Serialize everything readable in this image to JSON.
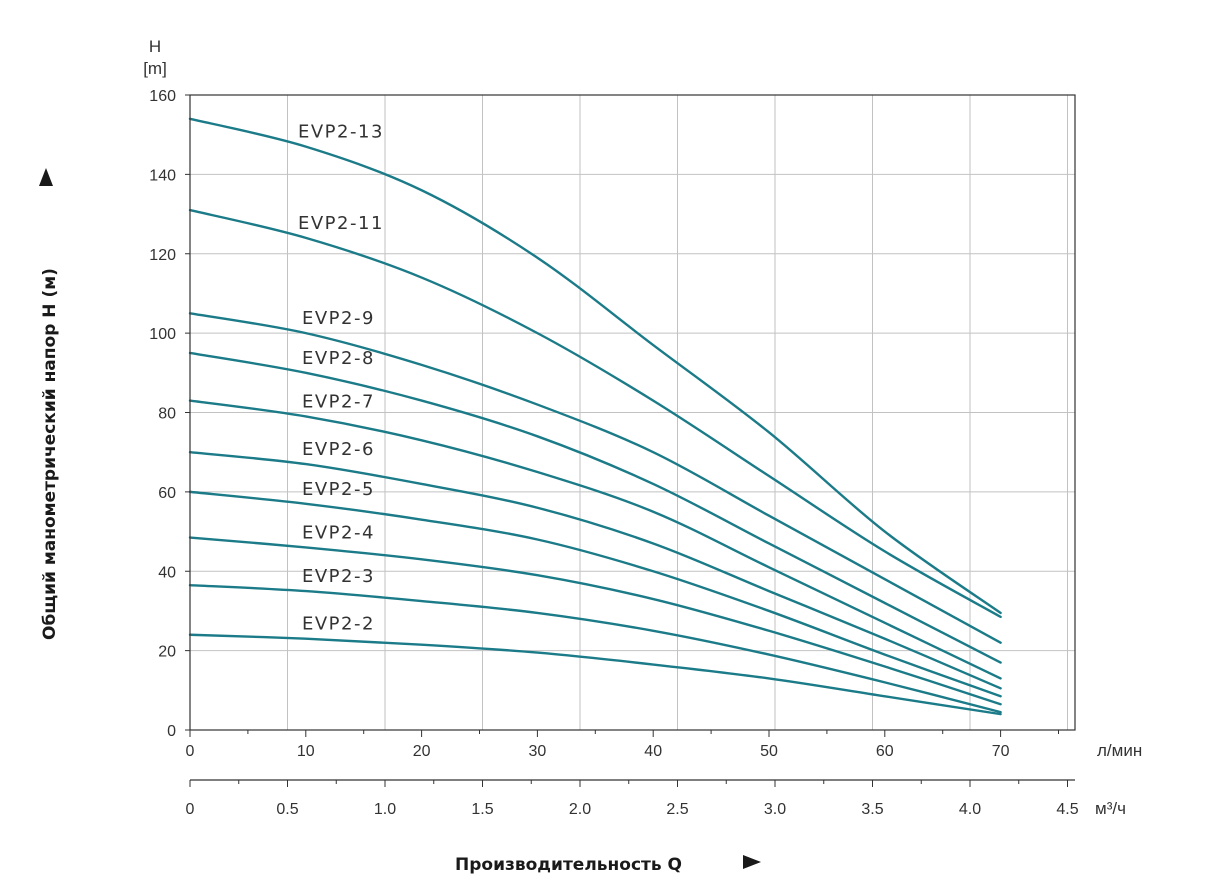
{
  "chart_data": {
    "type": "line",
    "y_unit_label": [
      "H",
      "[m]"
    ],
    "ylabel": "Общий манометрический напор H (м)",
    "xlabel": "Производительность Q",
    "x_unit_primary": "л/мин",
    "x_unit_secondary": "м³/ч",
    "ylim": [
      0,
      160
    ],
    "yticks": [
      0,
      20,
      40,
      60,
      80,
      100,
      120,
      140,
      160
    ],
    "xlim": [
      0,
      75
    ],
    "xticks": [
      0,
      10,
      20,
      30,
      40,
      50,
      60,
      70
    ],
    "x2lim": [
      0,
      4.5
    ],
    "x2ticks": [
      "0",
      "0.5",
      "1.0",
      "1.5",
      "2.0",
      "2.5",
      "3.0",
      "3.5",
      "4.0",
      "4.5"
    ],
    "grid": true,
    "colors": {
      "curve": "#1b7b88",
      "grid": "#c2c2c2",
      "axis": "#333333"
    },
    "x": [
      0,
      10,
      20,
      30,
      40,
      50,
      60,
      70
    ],
    "series": [
      {
        "name": "EVP2-13",
        "values": [
          154,
          147,
          136,
          119,
          97,
          75,
          50,
          29.5
        ]
      },
      {
        "name": "EVP2-11",
        "values": [
          131,
          124,
          114,
          100,
          83,
          64,
          45,
          28.5
        ]
      },
      {
        "name": "EVP2-9",
        "values": [
          105,
          100,
          92,
          82,
          70,
          54,
          38,
          22
        ]
      },
      {
        "name": "EVP2-8",
        "values": [
          95,
          90,
          83,
          74,
          62,
          47,
          32,
          17
        ]
      },
      {
        "name": "EVP2-7",
        "values": [
          83,
          79,
          73,
          65,
          55,
          41,
          27,
          13
        ]
      },
      {
        "name": "EVP2-6",
        "values": [
          70,
          67,
          62,
          56,
          47,
          35,
          23,
          10.5
        ]
      },
      {
        "name": "EVP2-5",
        "values": [
          60,
          57,
          53,
          48,
          40,
          30,
          19,
          8.5
        ]
      },
      {
        "name": "EVP2-4",
        "values": [
          48.5,
          46,
          43,
          39,
          33,
          25,
          16,
          6.5
        ]
      },
      {
        "name": "EVP2-3",
        "values": [
          36.5,
          35,
          32.5,
          29.5,
          25,
          19,
          12,
          4.5
        ]
      },
      {
        "name": "EVP2-2",
        "values": [
          24,
          23,
          21.5,
          19.5,
          16.5,
          13,
          8.5,
          4
        ]
      }
    ]
  }
}
